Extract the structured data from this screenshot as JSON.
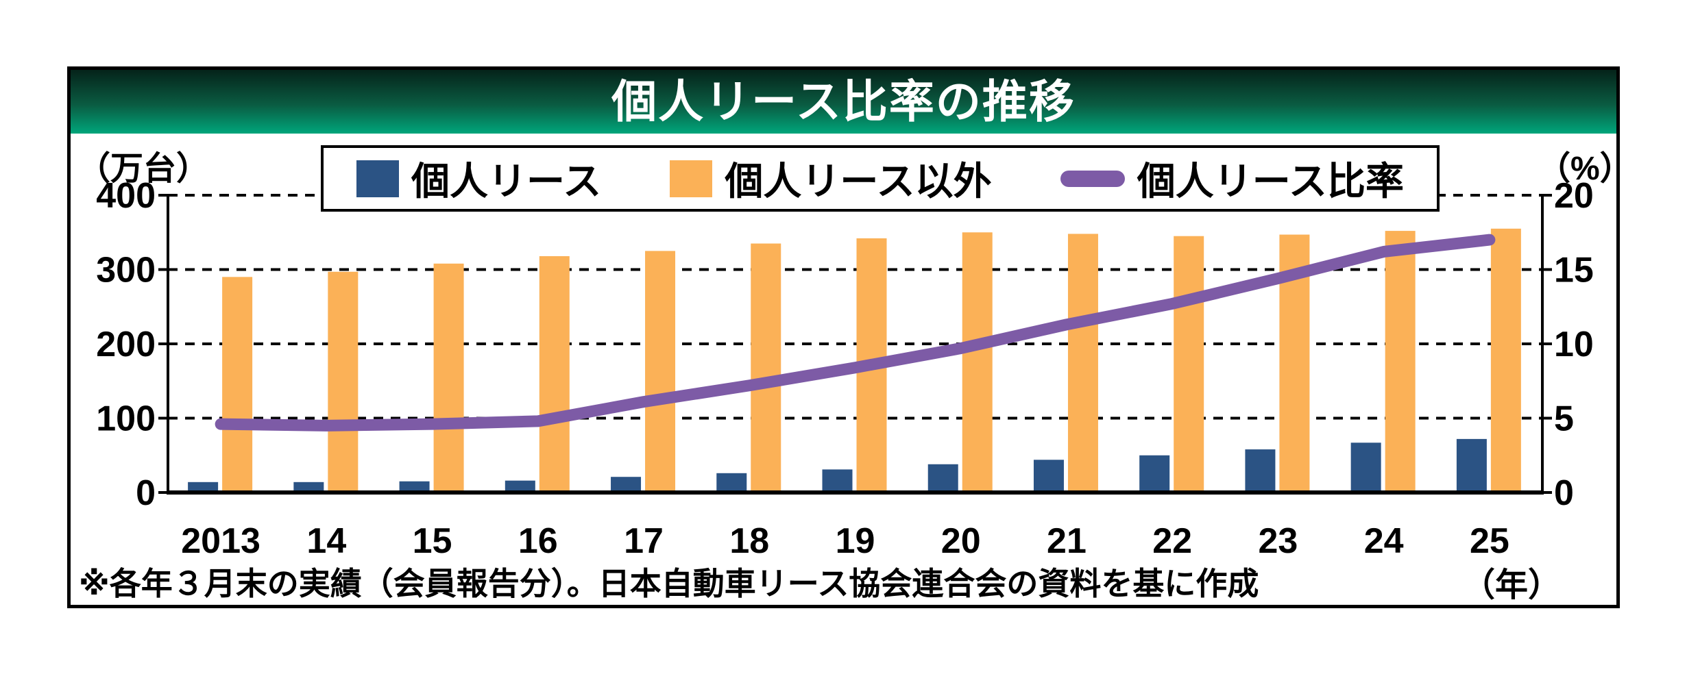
{
  "title": "個人リース比率の推移",
  "axis_left": {
    "unit": "（万台）",
    "ticks": [
      400,
      300,
      200,
      100,
      0
    ]
  },
  "axis_right": {
    "unit": "（%）",
    "ticks": [
      20,
      15,
      10,
      5,
      0
    ]
  },
  "x_axis": {
    "unit": "（年）"
  },
  "footnote": "※各年３月末の実績（会員報告分）。日本自動車リース協会連合会の資料を基に作成",
  "colors": {
    "bar_personal": "#2b5384",
    "bar_other": "#fbb157",
    "ratio_line": "#7d5ba6",
    "header_top": "#05231a",
    "header_bottom": "#00a67b"
  },
  "chart_data": {
    "type": "combo",
    "categories": [
      "2013",
      "14",
      "15",
      "16",
      "17",
      "18",
      "19",
      "20",
      "21",
      "22",
      "23",
      "24",
      "25"
    ],
    "series": [
      {
        "name": "個人リース",
        "type": "bar",
        "axis": "left",
        "unit": "万台",
        "color": "#2b5384",
        "values": [
          14,
          14,
          15,
          16,
          21,
          26,
          31,
          38,
          44,
          50,
          58,
          67,
          72
        ]
      },
      {
        "name": "個人リース以外",
        "type": "bar",
        "axis": "left",
        "unit": "万台",
        "color": "#fbb157",
        "values": [
          290,
          297,
          308,
          318,
          325,
          335,
          342,
          350,
          348,
          345,
          347,
          352,
          355
        ]
      },
      {
        "name": "個人リース比率",
        "type": "line",
        "axis": "right",
        "unit": "%",
        "color": "#7d5ba6",
        "values": [
          4.6,
          4.5,
          4.6,
          4.8,
          6.1,
          7.2,
          8.4,
          9.7,
          11.3,
          12.7,
          14.4,
          16.2,
          17.0
        ]
      }
    ],
    "ylim_left": [
      0,
      400
    ],
    "ylim_right": [
      0,
      20
    ],
    "grid": "horizontal-dashed",
    "legend_position": "top"
  }
}
